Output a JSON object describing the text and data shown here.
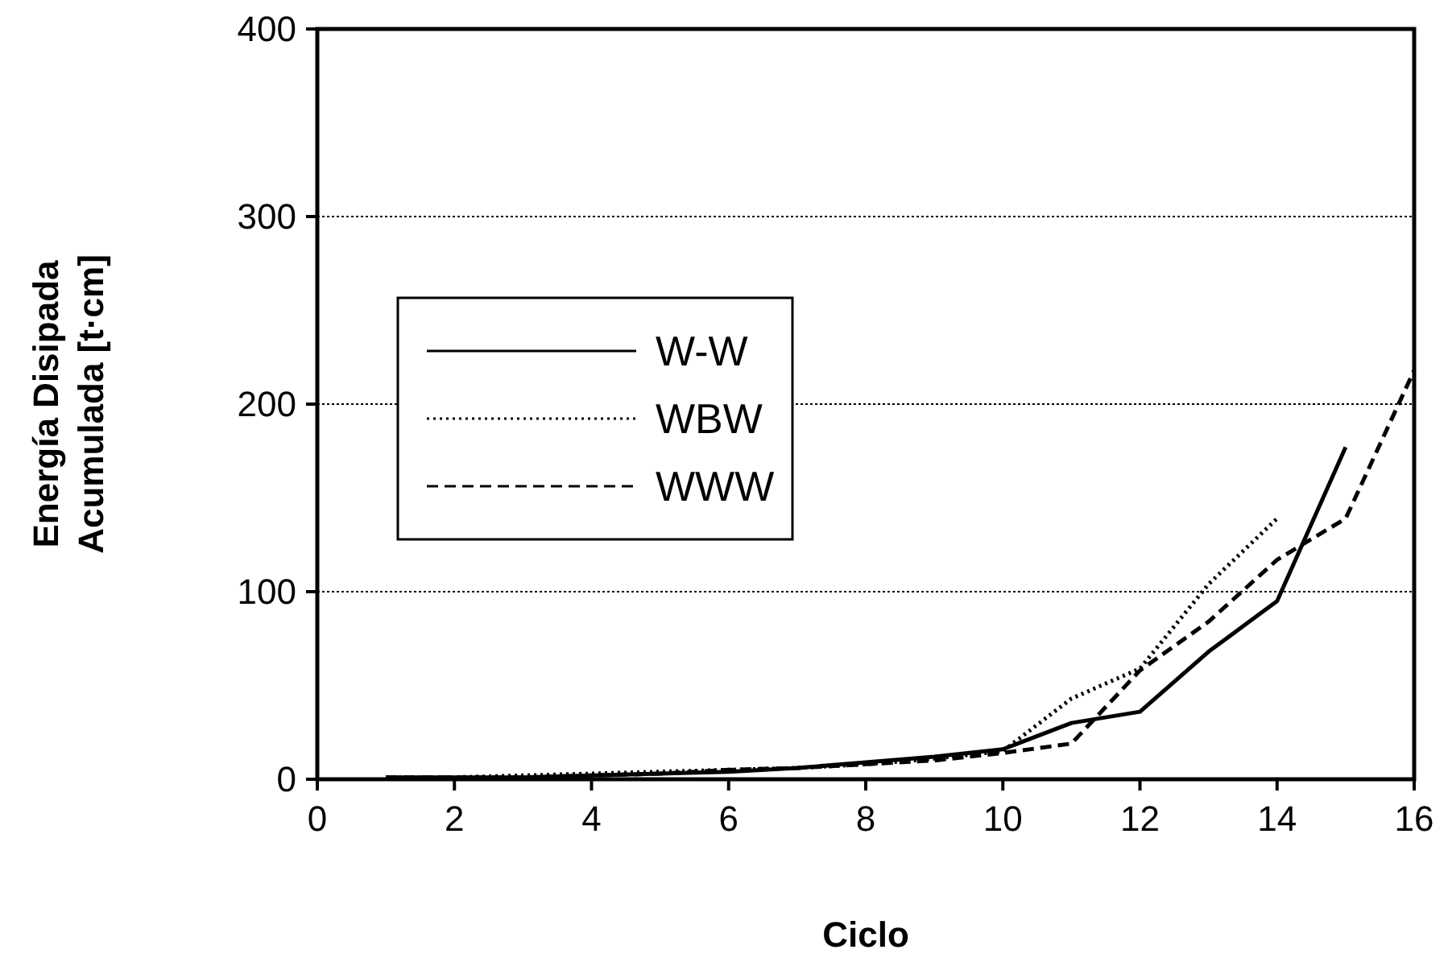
{
  "chart_data": {
    "type": "line",
    "xlabel": "Ciclo",
    "ylabel": "Energía Disipada Acumulada  [t·cm]",
    "xlim": [
      0,
      16
    ],
    "xticks": [
      0,
      2,
      4,
      6,
      8,
      10,
      12,
      14,
      16
    ],
    "ylim": [
      0,
      400
    ],
    "yticks": [
      0,
      100,
      200,
      300,
      400
    ],
    "grid": "y",
    "legend": "left",
    "marker": "none",
    "series": [
      {
        "name": "W-W",
        "color": "#000000",
        "line_style": "solid",
        "x": [
          1,
          2,
          3,
          4,
          5,
          6,
          7,
          8,
          9,
          10,
          11,
          12,
          13,
          14,
          15
        ],
        "values": [
          1,
          1,
          1,
          2,
          3,
          4,
          6,
          9,
          12,
          16,
          30,
          36,
          68,
          95,
          177
        ]
      },
      {
        "name": "WBW",
        "color": "#000000",
        "line_style": "dotted",
        "x": [
          1,
          2,
          3,
          4,
          5,
          6,
          7,
          8,
          9,
          10,
          11,
          12,
          13,
          14
        ],
        "values": [
          1,
          1,
          2,
          3,
          4,
          5,
          6,
          8,
          11,
          15,
          43,
          59,
          104,
          139
        ]
      },
      {
        "name": "WWW",
        "color": "#000000",
        "line_style": "dashed",
        "x": [
          1,
          2,
          3,
          4,
          5,
          6,
          7,
          8,
          9,
          10,
          11,
          12,
          13,
          14,
          15,
          16
        ],
        "values": [
          1,
          1,
          1,
          2,
          3,
          5,
          6,
          8,
          10,
          14,
          19,
          58,
          84,
          117,
          139,
          218
        ]
      }
    ]
  }
}
